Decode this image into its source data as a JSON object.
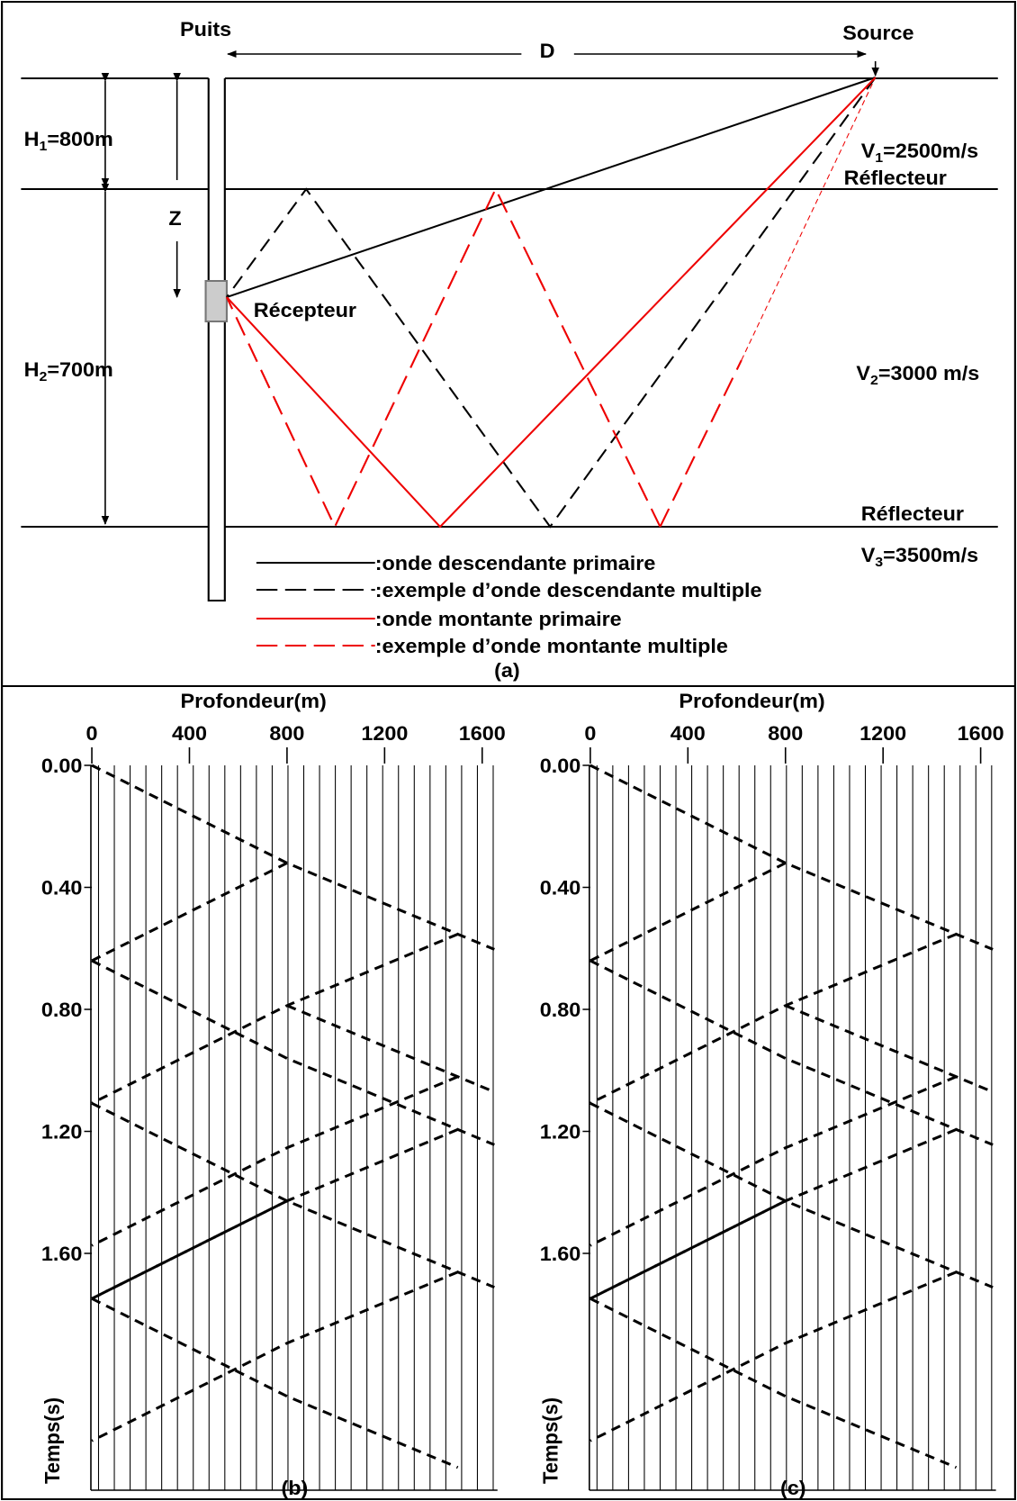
{
  "panel_a": {
    "well": "Puits",
    "distance": "D",
    "source": "Source",
    "h1": {
      "base": "H",
      "sub": "1",
      "rest": "=800m"
    },
    "z": "Z",
    "v1": {
      "base": "V",
      "sub": "1",
      "rest": "=2500m/s"
    },
    "reflector_1": "Réflecteur",
    "receiver": "Récepteur",
    "h2": {
      "base": "H",
      "sub": "2",
      "rest": "=700m"
    },
    "v2": {
      "base": "V",
      "sub": "2",
      "rest": "=3000 m/s"
    },
    "reflector_2": "Réflecteur",
    "v3": {
      "base": "V",
      "sub": "3",
      "rest": "=3500m/s"
    },
    "legend": [
      ":onde descendante primaire",
      ":exemple d’onde descendante multiple",
      ":onde montante primaire",
      ":exemple d’onde montante multiple"
    ],
    "caption": "(a)"
  },
  "panel_b": {
    "x_title": "Profondeur(m)",
    "x_ticks": [
      "0",
      "400",
      "800",
      "1200",
      "1600"
    ],
    "y_title": "Temps(s)",
    "y_ticks": [
      "0.00",
      "0.40",
      "0.80",
      "1.20",
      "1.60"
    ],
    "caption": "(b)"
  },
  "panel_c": {
    "x_title": "Profondeur(m)",
    "x_ticks": [
      "0",
      "400",
      "800",
      "1200",
      "1600"
    ],
    "y_title": "Temps(s)",
    "y_ticks": [
      "0.00",
      "0.40",
      "0.80",
      "1.20",
      "1.60"
    ],
    "caption": "(c)"
  }
}
